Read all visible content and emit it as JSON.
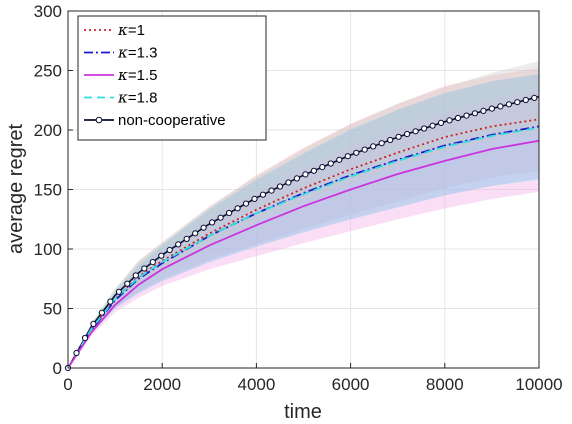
{
  "chart_data": {
    "type": "line",
    "xlabel": "time",
    "ylabel": "average regret",
    "xlim": [
      0,
      10000
    ],
    "ylim": [
      0,
      300
    ],
    "xticks": [
      0,
      2000,
      4000,
      6000,
      8000,
      10000
    ],
    "yticks": [
      0,
      50,
      100,
      150,
      200,
      250,
      300
    ],
    "grid": true,
    "legend_position": "top-left",
    "x": [
      0,
      500,
      1000,
      1500,
      2000,
      3000,
      4000,
      5000,
      6000,
      7000,
      8000,
      9000,
      10000
    ],
    "series": [
      {
        "name": "κ=1",
        "legend_prefix": "κ",
        "legend_value": "=1",
        "color": "#cc2222",
        "style": "dotted",
        "values": [
          0,
          33,
          58,
          77,
          90,
          113,
          133,
          151,
          167,
          181,
          194,
          203,
          209
        ],
        "band_upper": [
          0,
          36,
          65,
          90,
          105,
          135,
          162,
          185,
          205,
          222,
          237,
          246,
          252
        ],
        "band_lower": [
          0,
          30,
          51,
          64,
          75,
          91,
          104,
          117,
          129,
          140,
          151,
          160,
          166
        ],
        "band_color": "#f4a6b0"
      },
      {
        "name": "κ=1.3",
        "legend_prefix": "κ",
        "legend_value": "=1.3",
        "color": "#1a1acc",
        "style": "dashdot",
        "values": [
          0,
          32,
          57,
          75,
          88,
          111,
          130,
          147,
          162,
          175,
          187,
          196,
          203
        ],
        "band_upper": [
          0,
          35,
          63,
          86,
          103,
          133,
          158,
          180,
          200,
          217,
          231,
          241,
          247
        ],
        "band_lower": [
          0,
          29,
          50,
          63,
          73,
          89,
          102,
          114,
          125,
          135,
          145,
          153,
          159
        ],
        "band_color": "#8c96e6"
      },
      {
        "name": "κ=1.5",
        "legend_prefix": "κ",
        "legend_value": "=1.5",
        "color": "#cc33dd",
        "style": "solid",
        "values": [
          0,
          30,
          53,
          70,
          83,
          103,
          120,
          136,
          150,
          163,
          174,
          184,
          191
        ],
        "band_upper": [
          0,
          33,
          59,
          81,
          97,
          124,
          147,
          168,
          186,
          201,
          215,
          226,
          233
        ],
        "band_lower": [
          0,
          27,
          47,
          59,
          69,
          83,
          94,
          105,
          115,
          125,
          134,
          142,
          148
        ],
        "band_color": "#f0a0e6"
      },
      {
        "name": "κ=1.8",
        "legend_prefix": "κ",
        "legend_value": "=1.8",
        "color": "#33dddd",
        "style": "dashed",
        "values": [
          0,
          33,
          58,
          76,
          89,
          111,
          130,
          146,
          161,
          174,
          186,
          195,
          202
        ],
        "band_upper": [
          0,
          37,
          66,
          88,
          104,
          134,
          159,
          181,
          201,
          217,
          231,
          241,
          247
        ],
        "band_lower": [
          0,
          29,
          50,
          63,
          73,
          89,
          102,
          114,
          125,
          135,
          145,
          153,
          158
        ],
        "band_color": "#8ee8ee"
      },
      {
        "name": "non-cooperative",
        "legend_prefix": "",
        "legend_value": "non-cooperative",
        "color": "#0a0f33",
        "style": "solid-marker",
        "values": [
          0,
          35,
          61,
          80,
          95,
          121,
          143,
          162,
          179,
          194,
          207,
          218,
          228
        ],
        "band_upper": [
          0,
          38,
          67,
          90,
          106,
          136,
          161,
          184,
          205,
          222,
          236,
          248,
          258
        ],
        "band_lower": [
          0,
          32,
          55,
          70,
          83,
          104,
          123,
          140,
          155,
          169,
          182,
          192,
          200
        ],
        "band_color": "#c8c8c8"
      }
    ]
  }
}
